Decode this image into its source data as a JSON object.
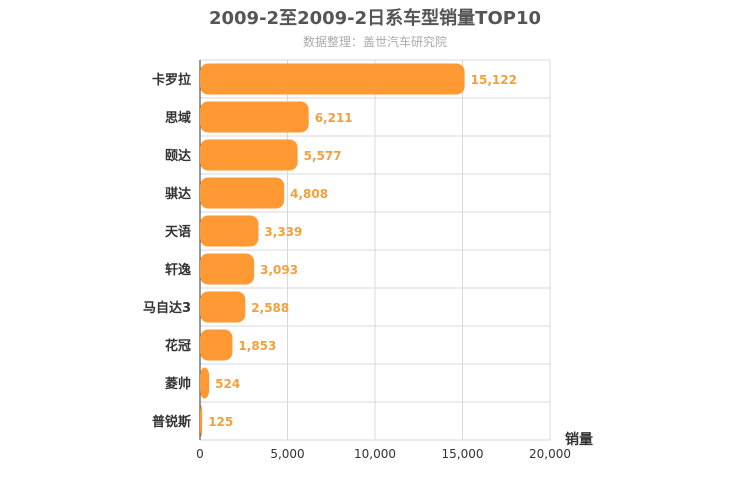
{
  "title": "2009-2至2009-2日系车型销量TOP10",
  "subtitle": "数据整理：盖世汽车研究院",
  "colors": {
    "bar": "#ff9933",
    "data_label": "#f0a040",
    "grid": "#d8d8d8"
  },
  "chart_data": {
    "type": "bar",
    "orientation": "horizontal",
    "categories": [
      "卡罗拉",
      "思域",
      "颐达",
      "骐达",
      "天语",
      "轩逸",
      "马自达3",
      "花冠",
      "菱帅",
      "普锐斯"
    ],
    "values": [
      15122,
      6211,
      5577,
      4808,
      3339,
      3093,
      2588,
      1853,
      524,
      125
    ],
    "value_labels": [
      "15,122",
      "6,211",
      "5,577",
      "4,808",
      "3,339",
      "3,093",
      "2,588",
      "1,853",
      "524",
      "125"
    ],
    "xlabel": "销量",
    "xlim": [
      0,
      20000
    ],
    "xticks": [
      0,
      5000,
      10000,
      15000,
      20000
    ],
    "xtick_labels": [
      "0",
      "5,000",
      "10,000",
      "15,000",
      "20,000"
    ],
    "grid": true,
    "legend": "none"
  }
}
